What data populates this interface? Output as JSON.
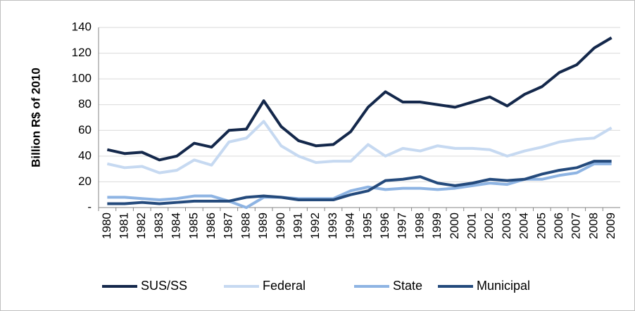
{
  "chart_data": {
    "type": "line",
    "y_label": "Billion R$ of 2010",
    "categories": [
      "1980",
      "1981",
      "1982",
      "1983",
      "1984",
      "1985",
      "1986",
      "1987",
      "1988",
      "1989",
      "1990",
      "1991",
      "1992",
      "1993",
      "1994",
      "1995",
      "1996",
      "1997",
      "1998",
      "1999",
      "2000",
      "2001",
      "2002",
      "2003",
      "2004",
      "2005",
      "2006",
      "2007",
      "2008",
      "2009"
    ],
    "series": [
      {
        "name": "SUS/SS",
        "color": "#14284b",
        "values": [
          45,
          42,
          43,
          37,
          40,
          50,
          47,
          60,
          61,
          83,
          63,
          52,
          48,
          49,
          59,
          78,
          90,
          82,
          82,
          80,
          78,
          82,
          86,
          79,
          88,
          94,
          105,
          111,
          124,
          132
        ]
      },
      {
        "name": "Federal",
        "color": "#c6d9f1",
        "values": [
          34,
          31,
          32,
          27,
          29,
          37,
          33,
          51,
          54,
          67,
          48,
          40,
          35,
          36,
          36,
          49,
          40,
          46,
          44,
          48,
          46,
          46,
          45,
          40,
          44,
          47,
          51,
          53,
          54,
          62
        ]
      },
      {
        "name": "State",
        "color": "#8eb4e3",
        "values": [
          8,
          8,
          7,
          6,
          7,
          9,
          9,
          5,
          0,
          8,
          8,
          7,
          7,
          7,
          13,
          16,
          14,
          15,
          15,
          14,
          15,
          17,
          19,
          18,
          22,
          22,
          25,
          27,
          34,
          34
        ]
      },
      {
        "name": "Municipal",
        "color": "#244a7c",
        "values": [
          3,
          3,
          4,
          3,
          4,
          5,
          5,
          5,
          8,
          9,
          8,
          6,
          6,
          6,
          10,
          13,
          21,
          22,
          24,
          19,
          17,
          19,
          22,
          21,
          22,
          26,
          29,
          31,
          36,
          36
        ]
      }
    ],
    "ylim": [
      0,
      140
    ],
    "yticks": [
      {
        "value": 0,
        "label": "-"
      },
      20,
      40,
      60,
      80,
      100,
      120,
      140
    ],
    "grid": true,
    "legend": "bottom"
  }
}
